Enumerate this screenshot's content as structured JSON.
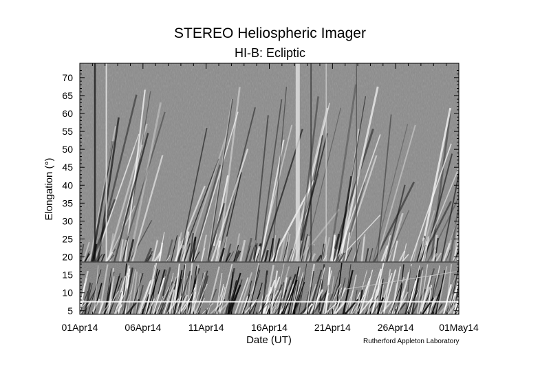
{
  "header": {
    "title": "STEREO Heliospheric Imager",
    "subtitle": "HI-B: Ecliptic"
  },
  "footer": {
    "credit": "Rutherford Appleton Laboratory"
  },
  "chart_data": {
    "type": "heatmap",
    "title": "STEREO Heliospheric Imager",
    "subtitle": "HI-B: Ecliptic",
    "xlabel": "Date (UT)",
    "ylabel": "Elongation (°)",
    "x_range": [
      "2014-04-01",
      "2014-05-01"
    ],
    "ylim": [
      4,
      74
    ],
    "x_ticks": [
      "01Apr14",
      "06Apr14",
      "11Apr14",
      "16Apr14",
      "21Apr14",
      "26Apr14",
      "01May14"
    ],
    "y_ticks": [
      "5",
      "10",
      "15",
      "20",
      "25",
      "30",
      "35",
      "40",
      "45",
      "50",
      "55",
      "60",
      "65",
      "70"
    ],
    "colormap": "grayscale",
    "instrument_boundary_elongation": 18.5,
    "grid": false
  }
}
